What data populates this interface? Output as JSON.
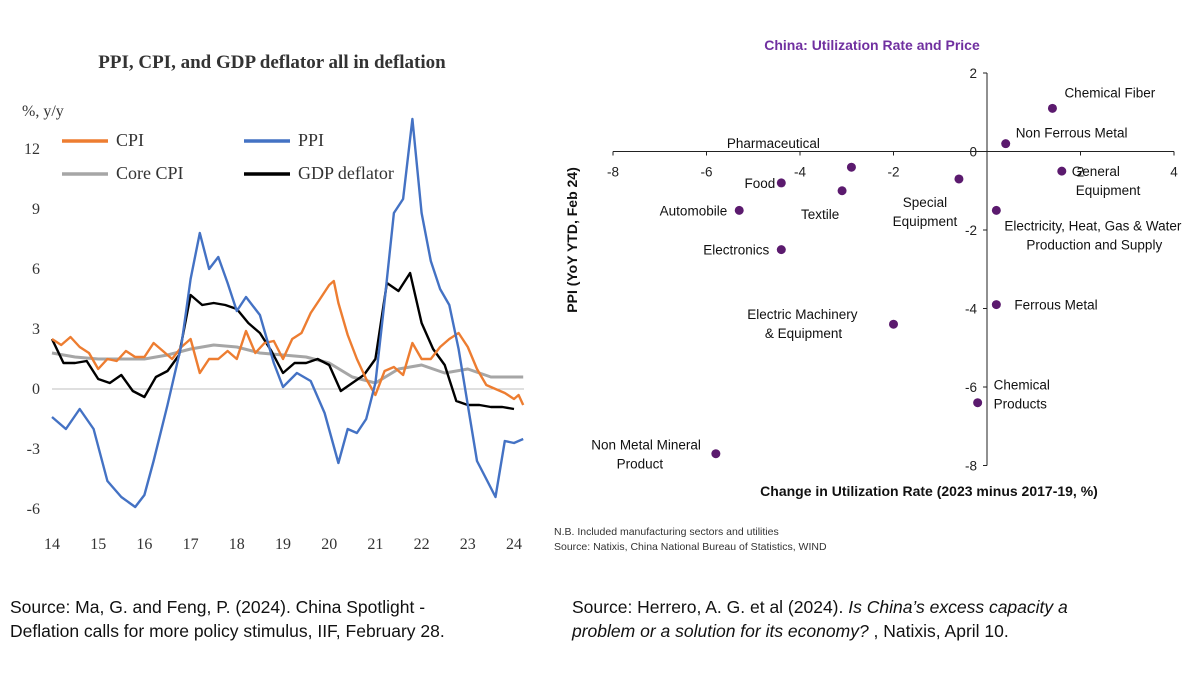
{
  "chart_data": [
    {
      "type": "line",
      "title": "PPI, CPI, and GDP deflator all in deflation",
      "ylabel": "%, y/y",
      "ylim": [
        -6,
        13
      ],
      "yticks": [
        12,
        9,
        6,
        3,
        0,
        -3,
        -6
      ],
      "xlim": [
        14,
        24.2
      ],
      "xticks": [
        "14",
        "15",
        "16",
        "17",
        "18",
        "19",
        "20",
        "21",
        "22",
        "23",
        "24"
      ],
      "legend": [
        "CPI",
        "PPI",
        "Core CPI",
        "GDP deflator"
      ],
      "series": [
        {
          "name": "CPI",
          "color": "#ed7d31",
          "x": [
            14.0,
            14.2,
            14.4,
            14.6,
            14.8,
            15.0,
            15.2,
            15.4,
            15.6,
            15.8,
            16.0,
            16.2,
            16.4,
            16.6,
            16.8,
            17.0,
            17.2,
            17.4,
            17.6,
            17.8,
            18.0,
            18.2,
            18.4,
            18.6,
            18.8,
            19.0,
            19.2,
            19.4,
            19.6,
            19.8,
            20.0,
            20.1,
            20.2,
            20.4,
            20.6,
            20.8,
            21.0,
            21.2,
            21.4,
            21.6,
            21.8,
            22.0,
            22.2,
            22.4,
            22.6,
            22.8,
            23.0,
            23.2,
            23.4,
            23.6,
            23.8,
            24.0,
            24.1,
            24.2
          ],
          "y": [
            2.5,
            2.2,
            2.6,
            2.1,
            1.8,
            1.0,
            1.5,
            1.4,
            1.9,
            1.6,
            1.6,
            2.3,
            1.9,
            1.5,
            2.1,
            2.5,
            0.8,
            1.5,
            1.5,
            1.9,
            1.5,
            2.9,
            1.8,
            2.3,
            2.4,
            1.5,
            2.5,
            2.8,
            3.8,
            4.5,
            5.2,
            5.4,
            4.3,
            2.7,
            1.5,
            0.5,
            -0.3,
            0.9,
            1.1,
            0.7,
            2.3,
            1.5,
            1.5,
            2.1,
            2.5,
            2.8,
            2.1,
            1.0,
            0.2,
            0.0,
            -0.2,
            -0.5,
            -0.3,
            -0.8
          ]
        },
        {
          "name": "PPI",
          "color": "#4472c4",
          "x": [
            14.0,
            14.3,
            14.6,
            14.9,
            15.2,
            15.5,
            15.8,
            16.0,
            16.2,
            16.5,
            16.8,
            17.0,
            17.2,
            17.4,
            17.6,
            17.8,
            18.0,
            18.2,
            18.5,
            18.8,
            19.0,
            19.3,
            19.6,
            19.9,
            20.2,
            20.4,
            20.6,
            20.8,
            21.0,
            21.2,
            21.4,
            21.6,
            21.8,
            22.0,
            22.2,
            22.4,
            22.6,
            22.8,
            23.0,
            23.2,
            23.4,
            23.6,
            23.8,
            24.0,
            24.2
          ],
          "y": [
            -1.4,
            -2.0,
            -1.0,
            -2.0,
            -4.6,
            -5.4,
            -5.9,
            -5.3,
            -3.6,
            -0.8,
            2.2,
            5.5,
            7.8,
            6.0,
            6.6,
            5.3,
            3.9,
            4.6,
            3.7,
            1.3,
            0.1,
            0.8,
            0.4,
            -1.2,
            -3.7,
            -2.0,
            -2.2,
            -1.5,
            0.3,
            4.4,
            8.8,
            9.5,
            13.5,
            8.8,
            6.4,
            5.0,
            4.2,
            2.0,
            -0.8,
            -3.6,
            -4.5,
            -5.4,
            -2.6,
            -2.7,
            -2.5
          ]
        },
        {
          "name": "Core CPI",
          "color": "#a6a6a6",
          "x": [
            14.0,
            14.5,
            15.0,
            15.5,
            16.0,
            16.5,
            17.0,
            17.5,
            18.0,
            18.5,
            19.0,
            19.5,
            20.0,
            20.5,
            21.0,
            21.5,
            22.0,
            22.5,
            23.0,
            23.5,
            24.0,
            24.2
          ],
          "y": [
            1.8,
            1.6,
            1.5,
            1.5,
            1.5,
            1.7,
            2.0,
            2.2,
            2.1,
            1.8,
            1.7,
            1.6,
            1.3,
            0.6,
            0.3,
            1.0,
            1.2,
            0.8,
            1.0,
            0.6,
            0.6,
            0.6
          ]
        },
        {
          "name": "GDP deflator",
          "color": "#000000",
          "x": [
            14.0,
            14.25,
            14.5,
            14.75,
            15.0,
            15.25,
            15.5,
            15.75,
            16.0,
            16.25,
            16.5,
            16.75,
            17.0,
            17.25,
            17.5,
            17.75,
            18.0,
            18.25,
            18.5,
            18.75,
            19.0,
            19.25,
            19.5,
            19.75,
            20.0,
            20.25,
            20.5,
            20.75,
            21.0,
            21.25,
            21.5,
            21.75,
            22.0,
            22.25,
            22.5,
            22.75,
            23.0,
            23.25,
            23.5,
            23.75,
            24.0
          ],
          "y": [
            2.5,
            1.3,
            1.3,
            1.4,
            0.5,
            0.3,
            0.7,
            -0.1,
            -0.4,
            0.6,
            0.9,
            1.7,
            4.7,
            4.2,
            4.3,
            4.2,
            4.0,
            3.3,
            2.8,
            1.9,
            0.8,
            1.3,
            1.3,
            1.5,
            1.2,
            -0.1,
            0.3,
            0.7,
            1.5,
            5.3,
            4.9,
            5.8,
            3.3,
            2.0,
            1.2,
            -0.6,
            -0.8,
            -0.8,
            -0.9,
            -0.9,
            -1.0
          ]
        }
      ]
    },
    {
      "type": "scatter",
      "title": "China: Utilization Rate and Price",
      "xlabel": "Change in Utilization Rate (2023 minus 2017-19, %)",
      "ylabel": "PPI (YoY YTD, Feb 24)",
      "xlim": [
        -8,
        4
      ],
      "ylim": [
        -8,
        2
      ],
      "xticks": [
        -8,
        -6,
        -4,
        -2,
        0,
        2,
        4
      ],
      "yticks": [
        2,
        0,
        -2,
        -4,
        -6,
        -8
      ],
      "point_color": "#5b1a6e",
      "points": [
        {
          "label": [
            "Chemical Fiber"
          ],
          "x": 1.4,
          "y": 1.1
        },
        {
          "label": [
            "Non Ferrous Metal"
          ],
          "x": 0.4,
          "y": 0.2
        },
        {
          "label": [
            "Pharmaceutical"
          ],
          "x": -2.9,
          "y": -0.4
        },
        {
          "label": [
            "General",
            "Equipment"
          ],
          "x": 1.6,
          "y": -0.5
        },
        {
          "label": [
            "Food"
          ],
          "x": -4.4,
          "y": -0.8
        },
        {
          "label": [
            "Textile"
          ],
          "x": -3.1,
          "y": -1.0
        },
        {
          "label": [
            "Special",
            "Equipment"
          ],
          "x": -0.6,
          "y": -0.7
        },
        {
          "label": [
            "Automobile"
          ],
          "x": -5.3,
          "y": -1.5
        },
        {
          "label": [
            "Electricity, Heat, Gas & Water",
            "Production and Supply"
          ],
          "x": 0.2,
          "y": -1.5
        },
        {
          "label": [
            "Electronics"
          ],
          "x": -4.4,
          "y": -2.5
        },
        {
          "label": [
            "Ferrous Metal"
          ],
          "x": 0.2,
          "y": -3.9
        },
        {
          "label": [
            "Electric Machinery",
            "& Equipment"
          ],
          "x": -2.0,
          "y": -4.4
        },
        {
          "label": [
            "Chemical",
            "Products"
          ],
          "x": -0.2,
          "y": -6.4
        },
        {
          "label": [
            "Non Metal Mineral",
            "Product"
          ],
          "x": -5.8,
          "y": -7.7
        }
      ],
      "notes": [
        "N.B. Included manufacturing sectors and utilities",
        "Source: Natixis, China National Bureau of Statistics, WIND"
      ]
    }
  ],
  "sources": {
    "left": {
      "line1": "Source: Ma, G. and Feng, P. (2024). China Spotlight -",
      "line2": "Deflation calls for more policy stimulus, IIF, February 28."
    },
    "right": {
      "prefix": "Source: Herrero, A. G. et al (2024). ",
      "italic1": "Is China’s excess capacity a",
      "italic2": "problem or a solution for its economy? ",
      "suffix": ", Natixis, April 10."
    }
  }
}
